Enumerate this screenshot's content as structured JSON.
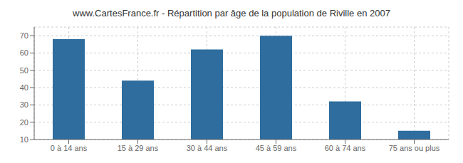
{
  "chart_data": {
    "type": "bar",
    "title": "www.CartesFrance.fr - Répartition par âge de la population de Riville en 2007",
    "categories": [
      "0 à 14 ans",
      "15 à 29 ans",
      "30 à 44 ans",
      "45 à 59 ans",
      "60 à 74 ans",
      "75 ans ou plus"
    ],
    "values": [
      68,
      44,
      62,
      70,
      32,
      15
    ],
    "color": "#2e6d9e",
    "ylim": [
      10,
      75
    ],
    "yticks": [
      10,
      20,
      30,
      40,
      50,
      60,
      70
    ],
    "grid": true
  }
}
